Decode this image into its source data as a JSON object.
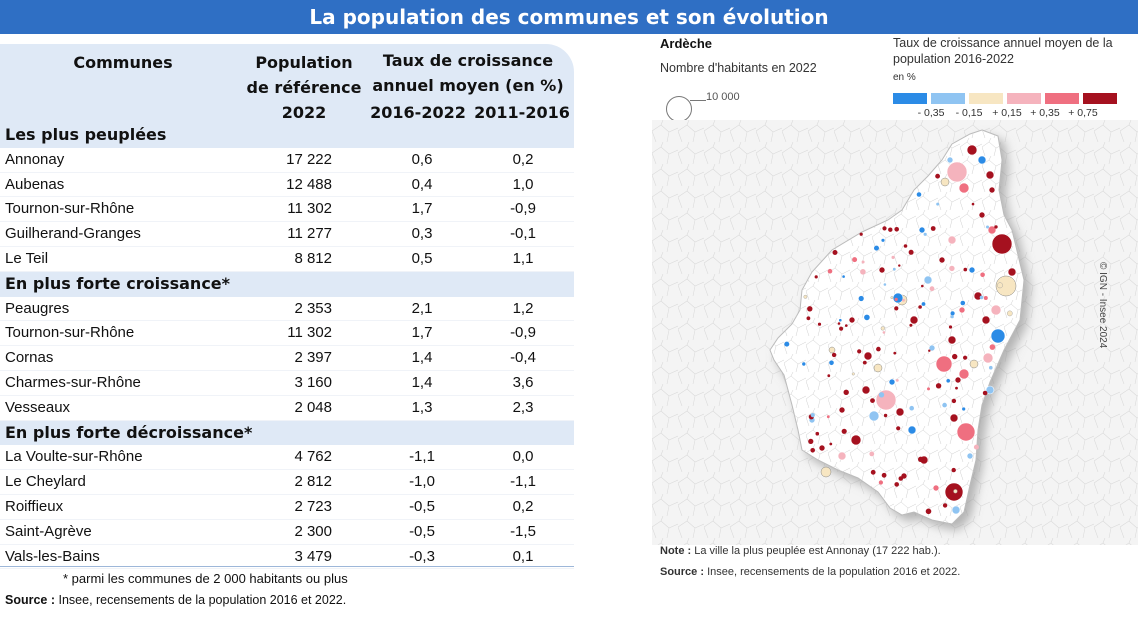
{
  "title": "La population des communes et son évolution",
  "table": {
    "headers": {
      "communes": "Communes",
      "population_l1": "Population",
      "population_l2": "de référence",
      "population_l3": "2022",
      "taux_l1": "Taux de croissance",
      "taux_l2": "annuel moyen (en %)",
      "period1": "2016-2022",
      "period2": "2011-2016"
    },
    "sections": [
      {
        "label": "Les plus peuplées",
        "rows": [
          {
            "name": "Annonay",
            "pop": "17 222",
            "t1": "0,6",
            "t2": "0,2"
          },
          {
            "name": "Aubenas",
            "pop": "12 488",
            "t1": "0,4",
            "t2": "1,0"
          },
          {
            "name": "Tournon-sur-Rhône",
            "pop": "11 302",
            "t1": "1,7",
            "t2": "-0,9"
          },
          {
            "name": "Guilherand-Granges",
            "pop": "11 277",
            "t1": "0,3",
            "t2": "-0,1"
          },
          {
            "name": "Le Teil",
            "pop": "8 812",
            "t1": "0,5",
            "t2": "1,1"
          }
        ]
      },
      {
        "label": "En plus forte croissance*",
        "rows": [
          {
            "name": "Peaugres",
            "pop": "2 353",
            "t1": "2,1",
            "t2": "1,2"
          },
          {
            "name": "Tournon-sur-Rhône",
            "pop": "11 302",
            "t1": "1,7",
            "t2": "-0,9"
          },
          {
            "name": "Cornas",
            "pop": "2 397",
            "t1": "1,4",
            "t2": "-0,4"
          },
          {
            "name": "Charmes-sur-Rhône",
            "pop": "3 160",
            "t1": "1,4",
            "t2": "3,6"
          },
          {
            "name": "Vesseaux",
            "pop": "2 048",
            "t1": "1,3",
            "t2": "2,3"
          }
        ]
      },
      {
        "label": "En plus forte décroissance*",
        "rows": [
          {
            "name": "La Voulte-sur-Rhône",
            "pop": "4 762",
            "t1": "-1,1",
            "t2": "0,0"
          },
          {
            "name": "Le Cheylard",
            "pop": "2 812",
            "t1": "-1,0",
            "t2": "-1,1"
          },
          {
            "name": "Roiffieux",
            "pop": "2 723",
            "t1": "-0,5",
            "t2": "0,2"
          },
          {
            "name": "Saint-Agrève",
            "pop": "2 300",
            "t1": "-0,5",
            "t2": "-1,5"
          },
          {
            "name": "Vals-les-Bains",
            "pop": "3 479",
            "t1": "-0,3",
            "t2": "0,1"
          }
        ]
      }
    ],
    "footnote": "* parmi les communes de 2 000 habitants ou plus",
    "source_label": "Source :",
    "source_text": "Insee, recensements de la population 2016 et 2022."
  },
  "map": {
    "title": "Ardèche",
    "size_legend_title": "Nombre d'habitants en 2022",
    "size_legend_value": "10 000",
    "color_legend_title": "Taux de croissance annuel moyen de la population 2016-2022",
    "color_legend_unit": "en %",
    "breaks": [
      "- 0,35",
      "- 0,15",
      "+ 0,15",
      "+ 0,35",
      "+ 0,75"
    ],
    "colors": [
      "#2b8be6",
      "#8fc4f2",
      "#f7e6c2",
      "#f5b3bd",
      "#ef6f80",
      "#a5111f"
    ],
    "copyright": "© IGN - Insee 2024",
    "note_label": "Note :",
    "note_text": "La ville la plus peuplée est Annonay (17 222 hab.).",
    "source_label": "Source :",
    "source_text": "Insee, recensements de la population 2016 et 2022."
  },
  "chart_data": {
    "type": "table",
    "title": "La population des communes et son évolution",
    "columns": [
      "Communes",
      "Population de référence 2022",
      "Taux 2016-2022 (%)",
      "Taux 2011-2016 (%)"
    ],
    "groups": [
      {
        "label": "Les plus peuplées",
        "rows": [
          [
            "Annonay",
            17222,
            0.6,
            0.2
          ],
          [
            "Aubenas",
            12488,
            0.4,
            1.0
          ],
          [
            "Tournon-sur-Rhône",
            11302,
            1.7,
            -0.9
          ],
          [
            "Guilherand-Granges",
            11277,
            0.3,
            -0.1
          ],
          [
            "Le Teil",
            8812,
            0.5,
            1.1
          ]
        ]
      },
      {
        "label": "En plus forte croissance*",
        "rows": [
          [
            "Peaugres",
            2353,
            2.1,
            1.2
          ],
          [
            "Tournon-sur-Rhône",
            11302,
            1.7,
            -0.9
          ],
          [
            "Cornas",
            2397,
            1.4,
            -0.4
          ],
          [
            "Charmes-sur-Rhône",
            3160,
            1.4,
            3.6
          ],
          [
            "Vesseaux",
            2048,
            1.3,
            2.3
          ]
        ]
      },
      {
        "label": "En plus forte décroissance*",
        "rows": [
          [
            "La Voulte-sur-Rhône",
            4762,
            -1.1,
            0.0
          ],
          [
            "Le Cheylard",
            2812,
            -1.0,
            -1.1
          ],
          [
            "Roiffieux",
            2723,
            -0.5,
            0.2
          ],
          [
            "Saint-Agrève",
            2300,
            -0.5,
            -1.5
          ],
          [
            "Vals-les-Bains",
            3479,
            -0.3,
            0.1
          ]
        ]
      }
    ]
  }
}
